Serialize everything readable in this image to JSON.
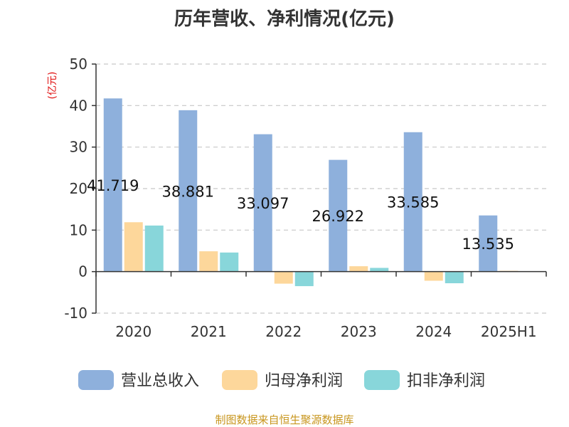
{
  "colors": {
    "revenue": "#8eb0dc",
    "parent_profit": "#fdd79b",
    "non_recurring_profit": "#88d6da"
  },
  "chart_data": {
    "type": "bar",
    "title": "历年营收、净利情况(亿元)",
    "ylabel": "(亿元)",
    "xlabel": "",
    "ylim": [
      -10,
      50
    ],
    "yticks": [
      -10,
      0,
      10,
      20,
      30,
      40,
      50
    ],
    "grid": true,
    "legend_position": "bottom",
    "categories": [
      "2020",
      "2021",
      "2022",
      "2023",
      "2024",
      "2025H1"
    ],
    "series": [
      {
        "name": "营业总收入",
        "values": [
          41.719,
          38.881,
          33.097,
          26.922,
          33.585,
          13.535
        ]
      },
      {
        "name": "归母净利润",
        "values": [
          11.9,
          4.9,
          -2.9,
          1.3,
          -2.2,
          0.2
        ]
      },
      {
        "name": "扣非净利润",
        "values": [
          11.1,
          4.6,
          -3.5,
          0.9,
          -2.8,
          0.1
        ]
      }
    ],
    "data_labels": [
      "41.719",
      "38.881",
      "33.097",
      "26.922",
      "33.585",
      "13.535"
    ],
    "source": "制图数据来自恒生聚源数据库"
  }
}
